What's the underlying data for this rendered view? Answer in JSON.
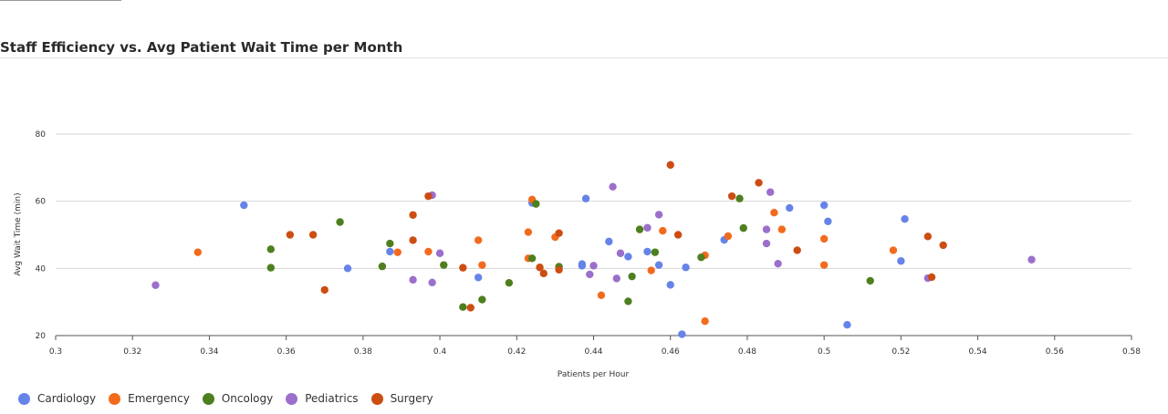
{
  "header": {
    "title": "Staff Efficiency vs. Avg Patient Wait Time per Month"
  },
  "chart_data": {
    "type": "scatter",
    "title": "Staff Efficiency vs. Avg Patient Wait Time per Month",
    "xlabel": "Patients per Hour",
    "ylabel": "Avg Wait Time (min)",
    "xlim": [
      0.3,
      0.58
    ],
    "ylim": [
      20,
      80
    ],
    "x_ticks": [
      "0.3",
      "0.32",
      "0.34",
      "0.36",
      "0.38",
      "0.4",
      "0.42",
      "0.44",
      "0.46",
      "0.48",
      "0.5",
      "0.52",
      "0.54",
      "0.56",
      "0.58"
    ],
    "y_ticks": [
      "20",
      "40",
      "60",
      "80"
    ],
    "grid": "horizontal",
    "legend_position": "bottom-left",
    "series": [
      {
        "name": "Cardiology",
        "color": "#6683e9",
        "points": [
          [
            0.349,
            58.8
          ],
          [
            0.376,
            40.0
          ],
          [
            0.387,
            45.0
          ],
          [
            0.41,
            37.3
          ],
          [
            0.424,
            59.5
          ],
          [
            0.437,
            40.8
          ],
          [
            0.437,
            41.3
          ],
          [
            0.438,
            60.8
          ],
          [
            0.444,
            48.0
          ],
          [
            0.449,
            43.5
          ],
          [
            0.454,
            45.0
          ],
          [
            0.457,
            41.0
          ],
          [
            0.46,
            35.1
          ],
          [
            0.463,
            20.4
          ],
          [
            0.464,
            40.3
          ],
          [
            0.474,
            48.5
          ],
          [
            0.491,
            58.0
          ],
          [
            0.5,
            58.8
          ],
          [
            0.501,
            54.0
          ],
          [
            0.506,
            23.2
          ],
          [
            0.52,
            42.2
          ],
          [
            0.521,
            54.7
          ]
        ]
      },
      {
        "name": "Emergency",
        "color": "#f26b1d",
        "points": [
          [
            0.337,
            44.8
          ],
          [
            0.389,
            44.8
          ],
          [
            0.397,
            45.0
          ],
          [
            0.41,
            48.4
          ],
          [
            0.411,
            41.0
          ],
          [
            0.423,
            50.8
          ],
          [
            0.423,
            43.0
          ],
          [
            0.424,
            60.5
          ],
          [
            0.43,
            49.3
          ],
          [
            0.442,
            32.0
          ],
          [
            0.455,
            39.4
          ],
          [
            0.458,
            51.2
          ],
          [
            0.469,
            24.3
          ],
          [
            0.469,
            43.9
          ],
          [
            0.475,
            49.6
          ],
          [
            0.487,
            56.6
          ],
          [
            0.489,
            51.6
          ],
          [
            0.5,
            48.8
          ],
          [
            0.5,
            41.0
          ],
          [
            0.518,
            45.4
          ]
        ]
      },
      {
        "name": "Oncology",
        "color": "#4e7f1e",
        "points": [
          [
            0.356,
            40.2
          ],
          [
            0.356,
            45.7
          ],
          [
            0.374,
            53.8
          ],
          [
            0.385,
            40.6
          ],
          [
            0.387,
            47.4
          ],
          [
            0.401,
            41.0
          ],
          [
            0.406,
            28.5
          ],
          [
            0.411,
            30.7
          ],
          [
            0.418,
            35.7
          ],
          [
            0.424,
            43.0
          ],
          [
            0.425,
            59.2
          ],
          [
            0.431,
            40.5
          ],
          [
            0.449,
            30.2
          ],
          [
            0.45,
            37.6
          ],
          [
            0.452,
            51.6
          ],
          [
            0.456,
            44.8
          ],
          [
            0.468,
            43.3
          ],
          [
            0.478,
            60.8
          ],
          [
            0.479,
            52.0
          ],
          [
            0.512,
            36.3
          ]
        ]
      },
      {
        "name": "Pediatrics",
        "color": "#9b6fcb",
        "points": [
          [
            0.326,
            35.0
          ],
          [
            0.393,
            36.6
          ],
          [
            0.398,
            61.8
          ],
          [
            0.398,
            35.8
          ],
          [
            0.4,
            44.5
          ],
          [
            0.439,
            38.2
          ],
          [
            0.44,
            40.8
          ],
          [
            0.445,
            64.3
          ],
          [
            0.446,
            37.0
          ],
          [
            0.447,
            44.5
          ],
          [
            0.454,
            52.1
          ],
          [
            0.457,
            56.0
          ],
          [
            0.485,
            47.4
          ],
          [
            0.485,
            51.6
          ],
          [
            0.486,
            62.7
          ],
          [
            0.488,
            41.4
          ],
          [
            0.527,
            37.1
          ],
          [
            0.554,
            42.6
          ]
        ]
      },
      {
        "name": "Surgery",
        "color": "#cc4d12",
        "points": [
          [
            0.361,
            50.0
          ],
          [
            0.367,
            50.0
          ],
          [
            0.37,
            33.6
          ],
          [
            0.393,
            55.9
          ],
          [
            0.393,
            48.4
          ],
          [
            0.397,
            61.5
          ],
          [
            0.406,
            40.2
          ],
          [
            0.408,
            28.3
          ],
          [
            0.426,
            40.3
          ],
          [
            0.427,
            38.5
          ],
          [
            0.431,
            50.5
          ],
          [
            0.431,
            39.6
          ],
          [
            0.46,
            70.8
          ],
          [
            0.462,
            50.0
          ],
          [
            0.476,
            61.5
          ],
          [
            0.483,
            65.5
          ],
          [
            0.493,
            45.4
          ],
          [
            0.527,
            49.5
          ],
          [
            0.528,
            37.4
          ],
          [
            0.531,
            46.9
          ]
        ]
      }
    ]
  }
}
